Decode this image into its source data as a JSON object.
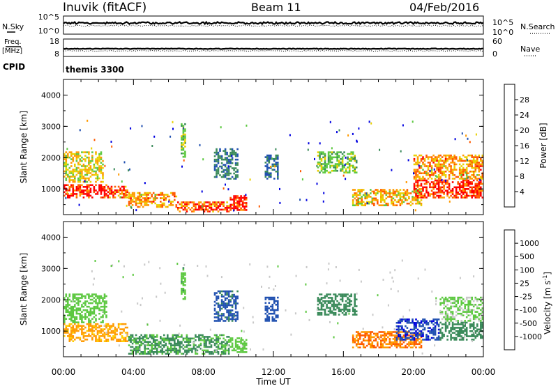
{
  "header": {
    "station": "Inuvik (fitACF)",
    "beam": "Beam 11",
    "date": "04/Feb/2016"
  },
  "top_panels": {
    "nsky_label": "N.Sky",
    "nsky_ticks": [
      "10^5",
      "10^0"
    ],
    "nsearch_label": "N.Search",
    "nsearch_ticks": [
      "10^5",
      "10^0"
    ],
    "freq_label": "Freq.",
    "freq_unit": "[MHz]",
    "freq_ticks": [
      "18",
      "8"
    ],
    "nave_label": "Nave",
    "nave_ticks": [
      "60",
      "0"
    ],
    "cpid_label": "CPID",
    "cpid_value": "themis 3300"
  },
  "colors": {
    "power_scale": [
      "#0000e0",
      "#2050b0",
      "#3a8a5a",
      "#5cc840",
      "#e8d000",
      "#ff9a00",
      "#ff5a00",
      "#ff0000"
    ],
    "velocity_scale": [
      "#ff0000",
      "#ff5a00",
      "#ff9a00",
      "#ffd000",
      "#c8c8c8",
      "#5cc840",
      "#3a8a5a",
      "#2050b0",
      "#0000e0"
    ]
  },
  "chart_data": [
    {
      "type": "heatmap",
      "title": "Power",
      "ylabel": "Slant Range [km]",
      "xlabel": "",
      "ylim": [
        180,
        4500
      ],
      "xlim": [
        0,
        24
      ],
      "yticks": [
        "1000",
        "2000",
        "3000",
        "4000"
      ],
      "colorbar": {
        "label": "Power [dB]",
        "ticks": [
          "4",
          "8",
          "12",
          "16",
          "20",
          "24",
          "28"
        ],
        "range": [
          0,
          32
        ]
      },
      "regions": [
        {
          "t0": 0.0,
          "t1": 2.5,
          "r0": 700,
          "r1": 1150,
          "value": 30
        },
        {
          "t0": 0.0,
          "t1": 2.3,
          "r0": 1200,
          "r1": 2200,
          "value": 18
        },
        {
          "t0": 2.5,
          "t1": 3.7,
          "r0": 700,
          "r1": 1100,
          "value": 26
        },
        {
          "t0": 3.7,
          "t1": 6.5,
          "r0": 400,
          "r1": 900,
          "value": 22
        },
        {
          "t0": 6.5,
          "t1": 9.5,
          "r0": 250,
          "r1": 600,
          "value": 26
        },
        {
          "t0": 6.7,
          "t1": 7.0,
          "r0": 2000,
          "r1": 3100,
          "value": 14
        },
        {
          "t0": 8.6,
          "t1": 10.0,
          "r0": 1300,
          "r1": 2300,
          "value": 9
        },
        {
          "t0": 9.5,
          "t1": 10.5,
          "r0": 300,
          "r1": 800,
          "value": 30
        },
        {
          "t0": 11.5,
          "t1": 12.3,
          "r0": 1300,
          "r1": 2100,
          "value": 8
        },
        {
          "t0": 14.5,
          "t1": 16.8,
          "r0": 1500,
          "r1": 2200,
          "value": 14
        },
        {
          "t0": 16.5,
          "t1": 20.5,
          "r0": 450,
          "r1": 1000,
          "value": 20
        },
        {
          "t0": 20.0,
          "t1": 24.0,
          "r0": 700,
          "r1": 1300,
          "value": 30
        },
        {
          "t0": 20.0,
          "t1": 24.0,
          "r0": 1300,
          "r1": 2100,
          "value": 22
        }
      ]
    },
    {
      "type": "heatmap",
      "title": "Velocity",
      "ylabel": "Slant Range [km]",
      "xlabel": "Time UT",
      "ylim": [
        180,
        4500
      ],
      "xlim": [
        0,
        24
      ],
      "xticks": [
        "00:00",
        "04:00",
        "08:00",
        "12:00",
        "16:00",
        "20:00",
        "00:00"
      ],
      "yticks": [
        "1000",
        "2000",
        "3000",
        "4000"
      ],
      "colorbar": {
        "label": "Velocity [m s",
        "label_sup": "-1",
        "label_end": "]",
        "ticks": [
          "-1000",
          "-500",
          "-100",
          "-25",
          "25",
          "100",
          "500",
          "1000"
        ]
      },
      "regions": [
        {
          "t0": 0.0,
          "t1": 3.7,
          "r0": 650,
          "r1": 1250,
          "value": -120
        },
        {
          "t0": 0.0,
          "t1": 2.5,
          "r0": 1250,
          "r1": 2200,
          "value": 60
        },
        {
          "t0": 3.7,
          "t1": 9.5,
          "r0": 250,
          "r1": 900,
          "value": 110
        },
        {
          "t0": 6.7,
          "t1": 7.0,
          "r0": 2000,
          "r1": 3100,
          "value": 80
        },
        {
          "t0": 8.6,
          "t1": 10.0,
          "r0": 1300,
          "r1": 2300,
          "value": 600
        },
        {
          "t0": 9.5,
          "t1": 10.5,
          "r0": 300,
          "r1": 800,
          "value": 40
        },
        {
          "t0": 11.5,
          "t1": 12.3,
          "r0": 1300,
          "r1": 2100,
          "value": 700
        },
        {
          "t0": 14.5,
          "t1": 16.8,
          "r0": 1500,
          "r1": 2200,
          "value": 250
        },
        {
          "t0": 16.5,
          "t1": 20.5,
          "r0": 450,
          "r1": 1000,
          "value": -500
        },
        {
          "t0": 19.0,
          "t1": 21.5,
          "r0": 700,
          "r1": 1400,
          "value": 900
        },
        {
          "t0": 21.5,
          "t1": 24.0,
          "r0": 700,
          "r1": 1300,
          "value": 150
        },
        {
          "t0": 21.5,
          "t1": 24.0,
          "r0": 1300,
          "r1": 2100,
          "value": 30
        }
      ]
    }
  ]
}
